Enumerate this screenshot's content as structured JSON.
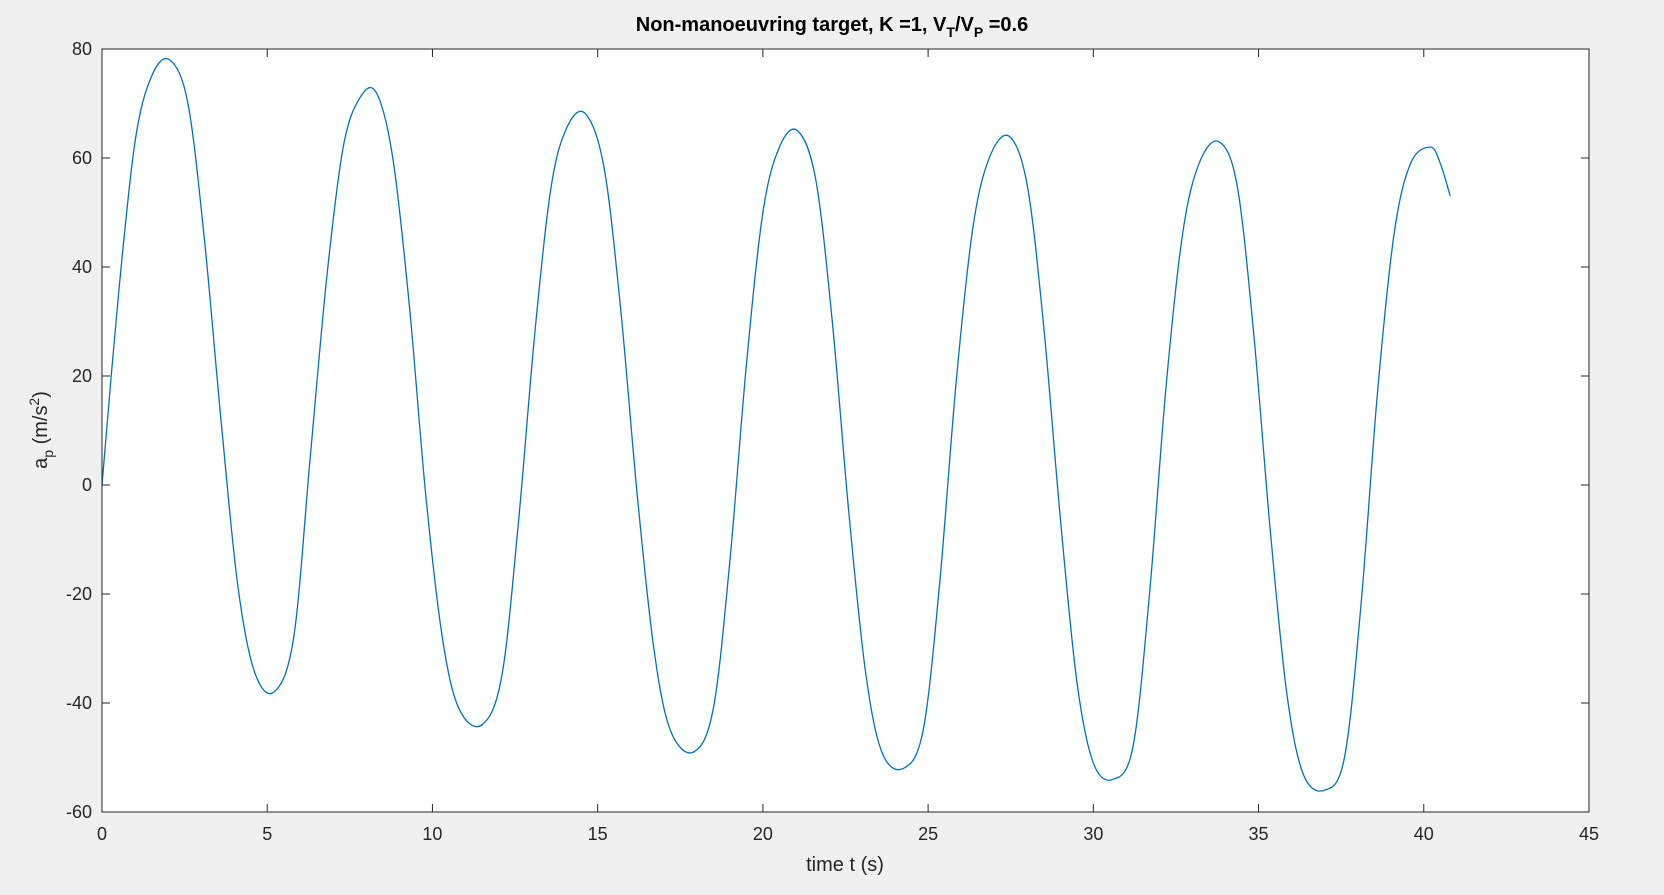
{
  "chart_data": {
    "type": "line",
    "title": {
      "main": "Non-manoeuvring target,   K =1,   V",
      "sub1": "T",
      "mid": "/V",
      "sub2": "P",
      "tail": " =0.6"
    },
    "xlabel": "time t (s)",
    "ylabel": {
      "base": "a",
      "sub": "p",
      "unit_pre": " (m/s",
      "sup": "2",
      "unit_post": ")"
    },
    "xlim": [
      0,
      45
    ],
    "ylim": [
      -60,
      80
    ],
    "xticks": [
      0,
      5,
      10,
      15,
      20,
      25,
      30,
      35,
      40,
      45
    ],
    "yticks": [
      -60,
      -40,
      -20,
      0,
      20,
      40,
      60,
      80
    ],
    "grid": false,
    "series": [
      {
        "color": "#0072bd",
        "x": [
          0,
          0.5,
          1.0,
          1.5,
          2.05,
          2.6,
          3.1,
          3.6,
          4.1,
          4.6,
          5.2,
          5.8,
          6.3,
          6.8,
          7.3,
          7.8,
          8.3,
          8.8,
          9.3,
          9.8,
          10.3,
          10.8,
          11.5,
          12.1,
          12.6,
          13.1,
          13.6,
          14.1,
          14.65,
          15.2,
          15.7,
          16.2,
          16.7,
          17.2,
          17.9,
          18.5,
          19.0,
          19.5,
          20.0,
          20.5,
          21.05,
          21.6,
          22.1,
          22.6,
          23.1,
          23.6,
          24.25,
          24.85,
          25.35,
          25.85,
          26.35,
          26.85,
          27.45,
          28.0,
          28.5,
          29.0,
          29.5,
          30.0,
          30.6,
          31.2,
          31.7,
          32.2,
          32.7,
          33.2,
          33.8,
          34.35,
          34.85,
          35.35,
          35.85,
          36.35,
          37.0,
          37.6,
          38.1,
          38.6,
          39.1,
          39.6,
          40.2,
          40.5,
          40.8
        ],
        "y": [
          0,
          35,
          63,
          75,
          78,
          70,
          45,
          12,
          -18,
          -34,
          -38,
          -28,
          5,
          38,
          62,
          71,
          72,
          60,
          33,
          -2,
          -28,
          -41,
          -44,
          -35,
          -7,
          28,
          55,
          66,
          68,
          58,
          32,
          -2,
          -30,
          -45,
          -49,
          -41,
          -14,
          22,
          50,
          62,
          65,
          56,
          30,
          -5,
          -34,
          -49,
          -52,
          -45,
          -18,
          19,
          47,
          60,
          64,
          55,
          29,
          -6,
          -36,
          -51,
          -54,
          -48,
          -20,
          18,
          46,
          59,
          63,
          55,
          28,
          -8,
          -38,
          -53,
          -56,
          -50,
          -22,
          17,
          46,
          59,
          62,
          59,
          53
        ]
      }
    ]
  }
}
